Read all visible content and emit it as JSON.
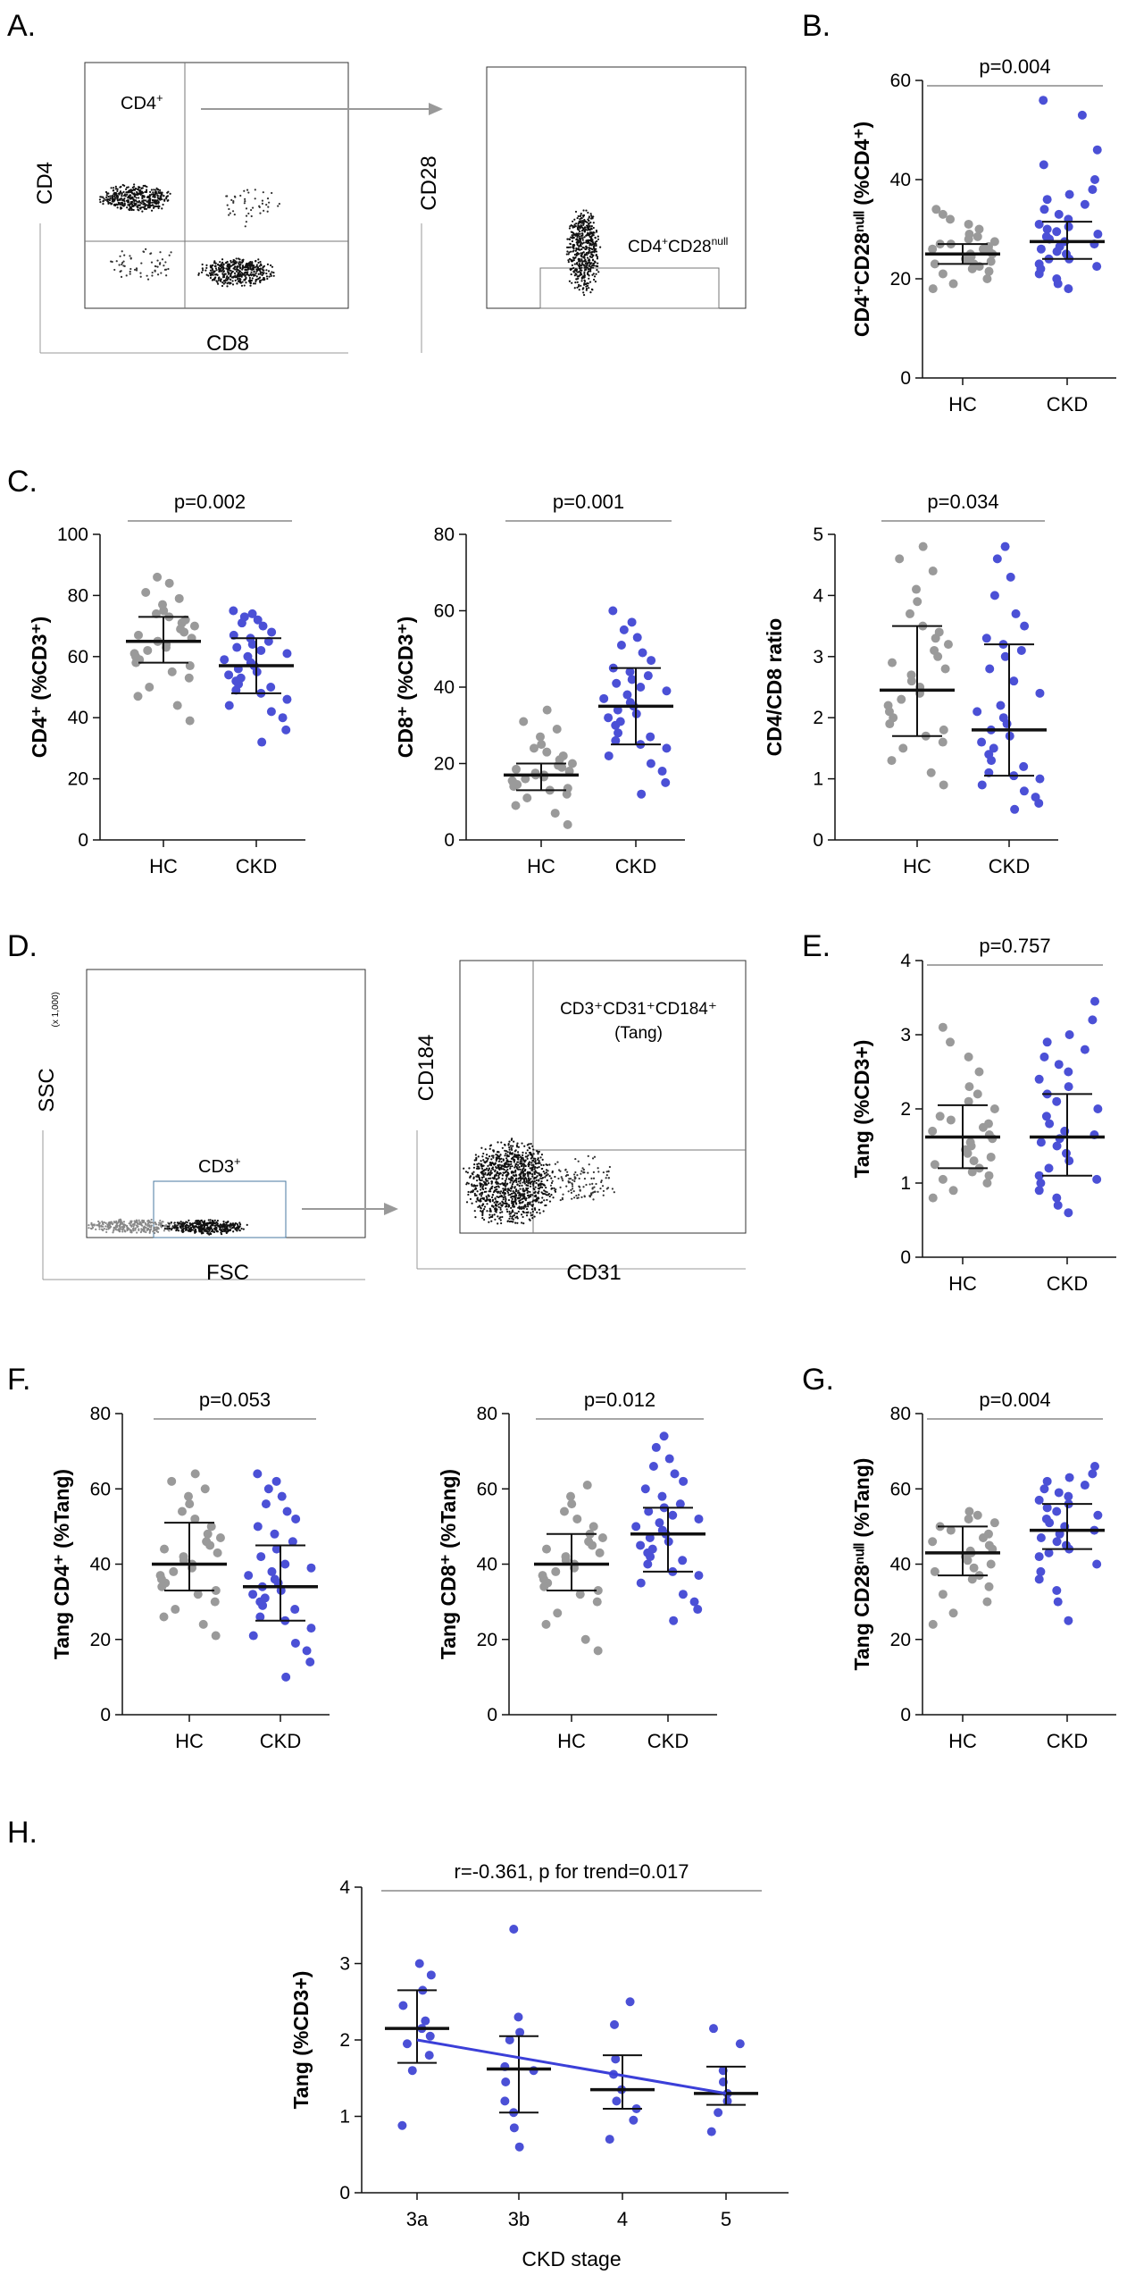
{
  "colors": {
    "hc": "#9a9a9a",
    "ckd": "#4b50d6",
    "axis": "#111111",
    "line": "#3b3fd8",
    "gate": "#888888"
  },
  "panel_labels": {
    "a": "A.",
    "b": "B.",
    "c": "C.",
    "d": "D.",
    "e": "E.",
    "f": "F.",
    "g": "G.",
    "h": "H."
  },
  "flow": {
    "a_left": {
      "xlabel": "CD8",
      "ylabel": "CD4",
      "gate_label": "CD4",
      "gate_sup": "+"
    },
    "a_right": {
      "xlabel": "",
      "ylabel": "CD28",
      "gate_label": "CD4",
      "gate_sup": "+",
      "gate_label2": "CD28",
      "gate_sup2": "null"
    },
    "d_left": {
      "xlabel": "FSC",
      "ylabel": "SSC",
      "gate_label": "CD3",
      "gate_sup": "+",
      "scale_note": "(x 1,000)"
    },
    "d_right": {
      "xlabel": "CD31",
      "ylabel": "CD184",
      "gate_line1": "CD3⁺CD31⁺CD184⁺",
      "gate_line2": "(Tang)"
    }
  },
  "chart_data": [
    {
      "id": "B",
      "type": "scatter",
      "title": "",
      "xlabel": "",
      "ylabel": "CD4⁺CD28ⁿᵘˡˡ (%CD4⁺)",
      "categories": [
        "HC",
        "CKD"
      ],
      "ylim": [
        0,
        60
      ],
      "yticks": [
        0,
        20,
        40,
        60
      ],
      "pvalue": "p=0.004",
      "series": [
        {
          "name": "HC",
          "median": 25,
          "q1": 23,
          "q3": 27,
          "values": [
            18,
            19,
            20,
            21,
            21.5,
            22,
            22.5,
            23,
            23,
            23.5,
            24,
            24,
            24.5,
            25,
            25,
            25.5,
            26,
            26,
            26.5,
            27,
            27,
            27.5,
            28,
            28.5,
            29,
            30,
            31,
            32,
            33,
            34
          ]
        },
        {
          "name": "CKD",
          "median": 27.5,
          "q1": 24,
          "q3": 31.5,
          "values": [
            18,
            19,
            20,
            21,
            22,
            22.5,
            23,
            24,
            24,
            25,
            25.5,
            26,
            26.5,
            27,
            27.5,
            28,
            28.5,
            29,
            29.5,
            30,
            30.5,
            31,
            32,
            33,
            34,
            35,
            36,
            37,
            38,
            40,
            43,
            46,
            53,
            56
          ]
        }
      ]
    },
    {
      "id": "C1",
      "type": "scatter",
      "title": "",
      "xlabel": "",
      "ylabel": "CD4⁺ (%CD3⁺)",
      "categories": [
        "HC",
        "CKD"
      ],
      "ylim": [
        0,
        100
      ],
      "yticks": [
        0,
        20,
        40,
        60,
        80,
        100
      ],
      "pvalue": "p=0.002",
      "series": [
        {
          "name": "HC",
          "median": 65,
          "q1": 58,
          "q3": 73,
          "values": [
            39,
            44,
            47,
            50,
            53,
            55,
            57,
            58,
            59,
            60,
            61,
            62,
            63,
            64,
            65,
            65,
            66,
            67,
            68,
            69,
            70,
            71,
            72,
            73,
            74,
            75,
            77,
            79,
            81,
            84,
            86
          ]
        },
        {
          "name": "CKD",
          "median": 57,
          "q1": 48,
          "q3": 66,
          "values": [
            32,
            36,
            40,
            42,
            44,
            46,
            48,
            49,
            50,
            51,
            52,
            53,
            54,
            55,
            56,
            57,
            58,
            59,
            60,
            61,
            62,
            63,
            64,
            65,
            66,
            67,
            68,
            70,
            71,
            72,
            73,
            74,
            75
          ]
        }
      ]
    },
    {
      "id": "C2",
      "type": "scatter",
      "title": "",
      "xlabel": "",
      "ylabel": "CD8⁺ (%CD3⁺)",
      "categories": [
        "HC",
        "CKD"
      ],
      "ylim": [
        0,
        80
      ],
      "yticks": [
        0,
        20,
        40,
        60,
        80
      ],
      "pvalue": "p=0.001",
      "series": [
        {
          "name": "HC",
          "median": 17,
          "q1": 13,
          "q3": 20,
          "values": [
            4,
            7,
            9,
            11,
            12,
            13,
            13.5,
            14,
            14.5,
            15,
            15.5,
            16,
            16.5,
            17,
            17,
            17.5,
            18,
            18.5,
            19,
            19.5,
            20,
            21,
            22,
            23,
            24,
            25,
            27,
            29,
            31,
            34
          ]
        },
        {
          "name": "CKD",
          "median": 35,
          "q1": 25,
          "q3": 45,
          "values": [
            12,
            15,
            18,
            20,
            22,
            24,
            25,
            26,
            27,
            28,
            30,
            31,
            32,
            33,
            34,
            35,
            36,
            37,
            38,
            39,
            40,
            41,
            42,
            43,
            44,
            45,
            47,
            49,
            51,
            53,
            55,
            57,
            60
          ]
        }
      ]
    },
    {
      "id": "C3",
      "type": "scatter",
      "title": "",
      "xlabel": "",
      "ylabel": "CD4/CD8 ratio",
      "categories": [
        "HC",
        "CKD"
      ],
      "ylim": [
        0,
        5
      ],
      "yticks": [
        0,
        1,
        2,
        3,
        4,
        5
      ],
      "pvalue": "p=0.034",
      "series": [
        {
          "name": "HC",
          "median": 2.45,
          "q1": 1.7,
          "q3": 3.5,
          "values": [
            0.9,
            1.1,
            1.3,
            1.5,
            1.6,
            1.7,
            1.8,
            1.9,
            2.0,
            2.1,
            2.2,
            2.3,
            2.4,
            2.5,
            2.6,
            2.7,
            2.8,
            2.9,
            3.0,
            3.1,
            3.2,
            3.3,
            3.4,
            3.5,
            3.7,
            3.9,
            4.1,
            4.4,
            4.6,
            4.8
          ]
        },
        {
          "name": "CKD",
          "median": 1.8,
          "q1": 1.05,
          "q3": 3.2,
          "values": [
            0.5,
            0.6,
            0.7,
            0.8,
            0.9,
            1.0,
            1.05,
            1.1,
            1.2,
            1.3,
            1.4,
            1.5,
            1.6,
            1.7,
            1.8,
            1.9,
            2.0,
            2.1,
            2.2,
            2.4,
            2.6,
            2.8,
            3.0,
            3.1,
            3.2,
            3.3,
            3.5,
            3.7,
            4.0,
            4.3,
            4.6,
            4.8
          ]
        }
      ]
    },
    {
      "id": "E",
      "type": "scatter",
      "title": "",
      "xlabel": "",
      "ylabel": "Tang (%CD3+)",
      "categories": [
        "HC",
        "CKD"
      ],
      "ylim": [
        0,
        4
      ],
      "yticks": [
        0,
        1,
        2,
        3,
        4
      ],
      "pvalue": "p=0.757",
      "series": [
        {
          "name": "HC",
          "median": 1.62,
          "q1": 1.2,
          "q3": 2.05,
          "values": [
            0.8,
            0.9,
            1.0,
            1.05,
            1.1,
            1.15,
            1.2,
            1.25,
            1.3,
            1.35,
            1.4,
            1.45,
            1.5,
            1.55,
            1.6,
            1.65,
            1.7,
            1.75,
            1.8,
            1.85,
            1.9,
            2.0,
            2.1,
            2.2,
            2.3,
            2.5,
            2.7,
            2.9,
            3.1
          ]
        },
        {
          "name": "CKD",
          "median": 1.62,
          "q1": 1.1,
          "q3": 2.2,
          "values": [
            0.6,
            0.7,
            0.8,
            0.9,
            1.0,
            1.05,
            1.1,
            1.2,
            1.3,
            1.4,
            1.5,
            1.55,
            1.6,
            1.65,
            1.7,
            1.8,
            1.9,
            2.0,
            2.1,
            2.2,
            2.3,
            2.4,
            2.5,
            2.6,
            2.7,
            2.8,
            2.9,
            3.0,
            3.2,
            3.45
          ]
        }
      ]
    },
    {
      "id": "F1",
      "type": "scatter",
      "title": "",
      "xlabel": "",
      "ylabel": "Tang CD4⁺ (%Tang)",
      "categories": [
        "HC",
        "CKD"
      ],
      "ylim": [
        0,
        80
      ],
      "yticks": [
        0,
        20,
        40,
        60,
        80
      ],
      "pvalue": "p=0.053",
      "series": [
        {
          "name": "HC",
          "median": 40,
          "q1": 33,
          "q3": 51,
          "values": [
            21,
            24,
            26,
            28,
            30,
            32,
            33,
            34,
            35,
            36,
            37,
            38,
            39,
            40,
            41,
            42,
            43,
            44,
            45,
            46,
            47,
            48,
            50,
            52,
            54,
            56,
            58,
            60,
            62,
            64
          ]
        },
        {
          "name": "CKD",
          "median": 34,
          "q1": 25,
          "q3": 45,
          "values": [
            10,
            14,
            17,
            19,
            21,
            23,
            25,
            26,
            28,
            29,
            30,
            31,
            32,
            33,
            34,
            35,
            36,
            37,
            38,
            39,
            40,
            42,
            44,
            46,
            48,
            50,
            52,
            54,
            56,
            58,
            60,
            62,
            64
          ]
        }
      ]
    },
    {
      "id": "F2",
      "type": "scatter",
      "title": "",
      "xlabel": "",
      "ylabel": "Tang CD8⁺ (%Tang)",
      "categories": [
        "HC",
        "CKD"
      ],
      "ylim": [
        0,
        80
      ],
      "yticks": [
        0,
        20,
        40,
        60,
        80
      ],
      "pvalue": "p=0.012",
      "series": [
        {
          "name": "HC",
          "median": 40,
          "q1": 33,
          "q3": 48,
          "values": [
            17,
            20,
            24,
            27,
            30,
            32,
            33,
            34,
            35,
            36,
            37,
            38,
            39,
            40,
            41,
            42,
            43,
            44,
            45,
            46,
            47,
            48,
            50,
            52,
            54,
            56,
            58,
            61
          ]
        },
        {
          "name": "CKD",
          "median": 48,
          "q1": 38,
          "q3": 55,
          "values": [
            25,
            28,
            30,
            32,
            35,
            37,
            38,
            40,
            41,
            42,
            43,
            44,
            45,
            46,
            47,
            48,
            49,
            50,
            51,
            52,
            53,
            54,
            55,
            56,
            58,
            60,
            62,
            64,
            66,
            68,
            71,
            74
          ]
        }
      ]
    },
    {
      "id": "G",
      "type": "scatter",
      "title": "",
      "xlabel": "",
      "ylabel": "Tang CD28ⁿᵘˡˡ (%Tang)",
      "categories": [
        "HC",
        "CKD"
      ],
      "ylim": [
        0,
        80
      ],
      "yticks": [
        0,
        20,
        40,
        60,
        80
      ],
      "pvalue": "p=0.004",
      "series": [
        {
          "name": "HC",
          "median": 43,
          "q1": 37,
          "q3": 50,
          "values": [
            24,
            27,
            30,
            32,
            34,
            36,
            37,
            38,
            39,
            40,
            41,
            42,
            43,
            43.5,
            44,
            45,
            46,
            47,
            48,
            49,
            50,
            51,
            52,
            53,
            54
          ]
        },
        {
          "name": "CKD",
          "median": 49,
          "q1": 44,
          "q3": 56,
          "values": [
            25,
            30,
            33,
            36,
            38,
            40,
            42,
            43,
            44,
            45,
            46,
            47,
            48,
            49,
            50,
            51,
            52,
            53,
            54,
            55,
            56,
            57,
            58,
            59,
            60,
            61,
            62,
            63,
            64,
            66
          ]
        }
      ]
    },
    {
      "id": "H",
      "type": "scatter",
      "title": "",
      "xlabel": "CKD stage",
      "ylabel": "Tang (%CD3+)",
      "categories": [
        "3a",
        "3b",
        "4",
        "5"
      ],
      "ylim": [
        0,
        4
      ],
      "yticks": [
        0,
        1,
        2,
        3,
        4
      ],
      "pvalue": "r=-0.361, p for trend=0.017",
      "trend": {
        "from": 2.0,
        "to": 1.3
      },
      "series": [
        {
          "name": "3a",
          "median": 2.15,
          "q1": 1.7,
          "q3": 2.65,
          "values": [
            0.88,
            1.6,
            1.8,
            1.95,
            2.05,
            2.15,
            2.25,
            2.45,
            2.65,
            2.85,
            3.0
          ]
        },
        {
          "name": "3b",
          "median": 1.62,
          "q1": 1.05,
          "q3": 2.05,
          "values": [
            0.6,
            0.85,
            1.05,
            1.2,
            1.45,
            1.6,
            1.65,
            2.0,
            2.1,
            2.3,
            3.45
          ]
        },
        {
          "name": "4",
          "median": 1.35,
          "q1": 1.1,
          "q3": 1.8,
          "values": [
            0.7,
            0.95,
            1.1,
            1.2,
            1.35,
            1.55,
            1.75,
            2.2,
            2.5
          ]
        },
        {
          "name": "5",
          "median": 1.3,
          "q1": 1.15,
          "q3": 1.65,
          "values": [
            0.8,
            1.05,
            1.2,
            1.3,
            1.45,
            1.6,
            1.95,
            2.15
          ]
        }
      ]
    }
  ]
}
